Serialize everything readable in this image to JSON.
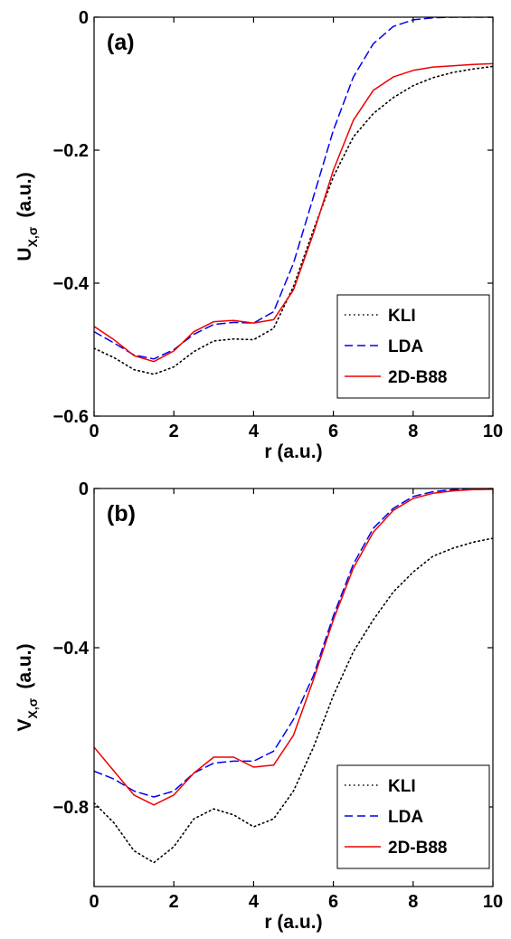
{
  "chart_data": [
    {
      "type": "line",
      "panel_label": "(a)",
      "xlabel": "r (a.u.)",
      "ylabel": "U",
      "ylabel_sub": "X,σ",
      "ylabel_unit": "(a.u.)",
      "xlim": [
        0,
        10
      ],
      "ylim": [
        -0.6,
        0
      ],
      "xticks": [
        0,
        2,
        4,
        6,
        8,
        10
      ],
      "xtick_labels": [
        "0",
        "2",
        "4",
        "6",
        "8",
        "10"
      ],
      "yticks": [
        -0.6,
        -0.4,
        -0.2,
        0
      ],
      "ytick_labels": [
        "−0.6",
        "−0.4",
        "−0.2",
        "0"
      ],
      "legend_position": "lower-right",
      "grid": false,
      "series": [
        {
          "name": "KLI",
          "style": "dotted",
          "color": "#000000",
          "x": [
            0,
            0.5,
            1.0,
            1.5,
            2.0,
            2.5,
            3.0,
            3.5,
            4.0,
            4.5,
            5.0,
            5.5,
            6.0,
            6.5,
            7.0,
            7.5,
            8.0,
            8.5,
            9.0,
            9.5,
            10.0
          ],
          "y": [
            -0.498,
            -0.512,
            -0.53,
            -0.537,
            -0.526,
            -0.503,
            -0.487,
            -0.484,
            -0.485,
            -0.468,
            -0.405,
            -0.32,
            -0.24,
            -0.18,
            -0.145,
            -0.121,
            -0.103,
            -0.091,
            -0.083,
            -0.078,
            -0.074
          ]
        },
        {
          "name": "LDA",
          "style": "dashed",
          "color": "#0000ee",
          "x": [
            0,
            0.5,
            1.0,
            1.5,
            2.0,
            2.5,
            3.0,
            3.5,
            4.0,
            4.5,
            5.0,
            5.5,
            6.0,
            6.5,
            7.0,
            7.5,
            8.0,
            8.5,
            9.0,
            9.5,
            10.0
          ],
          "y": [
            -0.473,
            -0.49,
            -0.508,
            -0.514,
            -0.5,
            -0.477,
            -0.462,
            -0.459,
            -0.46,
            -0.443,
            -0.37,
            -0.27,
            -0.17,
            -0.09,
            -0.04,
            -0.014,
            -0.004,
            -0.001,
            0,
            0,
            0
          ]
        },
        {
          "name": "2D-B88",
          "style": "solid",
          "color": "#ee0000",
          "x": [
            0,
            0.5,
            1.0,
            1.5,
            2.0,
            2.5,
            3.0,
            3.5,
            4.0,
            4.5,
            5.0,
            5.5,
            6.0,
            6.5,
            7.0,
            7.5,
            8.0,
            8.5,
            9.0,
            9.5,
            10.0
          ],
          "y": [
            -0.465,
            -0.485,
            -0.509,
            -0.518,
            -0.502,
            -0.473,
            -0.458,
            -0.456,
            -0.46,
            -0.455,
            -0.41,
            -0.325,
            -0.23,
            -0.155,
            -0.11,
            -0.09,
            -0.08,
            -0.075,
            -0.073,
            -0.071,
            -0.07
          ]
        }
      ]
    },
    {
      "type": "line",
      "panel_label": "(b)",
      "xlabel": "r (a.u.)",
      "ylabel": "V",
      "ylabel_sub": "X,σ",
      "ylabel_unit": "(a.u.)",
      "xlim": [
        0,
        10
      ],
      "ylim": [
        -1.0,
        0
      ],
      "xticks": [
        0,
        2,
        4,
        6,
        8,
        10
      ],
      "xtick_labels": [
        "0",
        "2",
        "4",
        "6",
        "8",
        "10"
      ],
      "yticks": [
        -0.8,
        -0.4,
        0
      ],
      "ytick_labels": [
        "−0.8",
        "−0.4",
        "0"
      ],
      "legend_position": "lower-right",
      "grid": false,
      "series": [
        {
          "name": "KLI",
          "style": "dotted",
          "color": "#000000",
          "x": [
            0,
            0.5,
            1.0,
            1.5,
            2.0,
            2.5,
            3.0,
            3.5,
            4.0,
            4.5,
            5.0,
            5.5,
            6.0,
            6.5,
            7.0,
            7.5,
            8.0,
            8.5,
            9.0,
            9.5,
            10.0
          ],
          "y": [
            -0.79,
            -0.84,
            -0.91,
            -0.94,
            -0.9,
            -0.83,
            -0.805,
            -0.82,
            -0.85,
            -0.83,
            -0.76,
            -0.65,
            -0.52,
            -0.41,
            -0.33,
            -0.26,
            -0.21,
            -0.17,
            -0.15,
            -0.135,
            -0.125
          ]
        },
        {
          "name": "LDA",
          "style": "dashed",
          "color": "#0000ee",
          "x": [
            0,
            0.5,
            1.0,
            1.5,
            2.0,
            2.5,
            3.0,
            3.5,
            4.0,
            4.5,
            5.0,
            5.5,
            6.0,
            6.5,
            7.0,
            7.5,
            8.0,
            8.5,
            9.0,
            9.5,
            10.0
          ],
          "y": [
            -0.71,
            -0.73,
            -0.76,
            -0.775,
            -0.76,
            -0.715,
            -0.69,
            -0.685,
            -0.685,
            -0.66,
            -0.58,
            -0.47,
            -0.32,
            -0.19,
            -0.1,
            -0.05,
            -0.02,
            -0.008,
            -0.003,
            -0.001,
            0
          ]
        },
        {
          "name": "2D-B88",
          "style": "solid",
          "color": "#ee0000",
          "x": [
            0,
            0.5,
            1.0,
            1.5,
            2.0,
            2.5,
            3.0,
            3.5,
            4.0,
            4.5,
            5.0,
            5.5,
            6.0,
            6.5,
            7.0,
            7.5,
            8.0,
            8.5,
            9.0,
            9.5,
            10.0
          ],
          "y": [
            -0.65,
            -0.71,
            -0.77,
            -0.795,
            -0.77,
            -0.715,
            -0.675,
            -0.675,
            -0.7,
            -0.695,
            -0.62,
            -0.48,
            -0.33,
            -0.2,
            -0.11,
            -0.055,
            -0.025,
            -0.012,
            -0.006,
            -0.003,
            -0.002
          ]
        }
      ]
    }
  ]
}
